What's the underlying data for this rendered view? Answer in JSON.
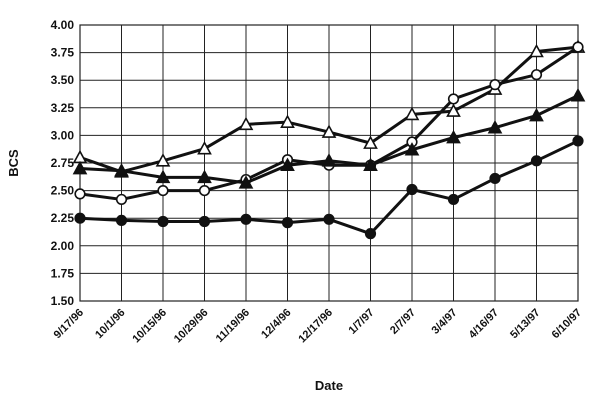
{
  "chart_data": {
    "type": "line",
    "title": "",
    "xlabel": "Date",
    "ylabel": "BCS",
    "ylim": [
      1.5,
      4.0
    ],
    "yticks": [
      "1.50",
      "1.75",
      "2.00",
      "2.25",
      "2.50",
      "2.75",
      "3.00",
      "3.25",
      "3.50",
      "3.75",
      "4.00"
    ],
    "grid": true,
    "categories": [
      "9/17/96",
      "10/1/96",
      "10/15/96",
      "10/29/96",
      "11/19/96",
      "12/4/96",
      "12/17/96",
      "1/7/97",
      "2/7/97",
      "3/4/97",
      "4/16/97",
      "5/13/97",
      "6/10/97"
    ],
    "series": [
      {
        "marker": "open-triangle",
        "values": [
          2.8,
          2.67,
          2.77,
          2.88,
          3.1,
          3.12,
          3.03,
          2.93,
          3.19,
          3.22,
          3.42,
          3.76,
          3.8
        ]
      },
      {
        "marker": "open-circle",
        "values": [
          2.47,
          2.42,
          2.5,
          2.5,
          2.6,
          2.78,
          2.73,
          2.73,
          2.94,
          3.33,
          3.46,
          3.55,
          3.8
        ]
      },
      {
        "marker": "filled-triangle",
        "values": [
          2.7,
          2.68,
          2.62,
          2.62,
          2.57,
          2.73,
          2.77,
          2.73,
          2.87,
          2.98,
          3.07,
          3.18,
          3.36
        ]
      },
      {
        "marker": "filled-circle",
        "values": [
          2.25,
          2.23,
          2.22,
          2.22,
          2.24,
          2.21,
          2.24,
          2.11,
          2.51,
          2.42,
          2.61,
          2.77,
          2.95
        ]
      }
    ]
  }
}
